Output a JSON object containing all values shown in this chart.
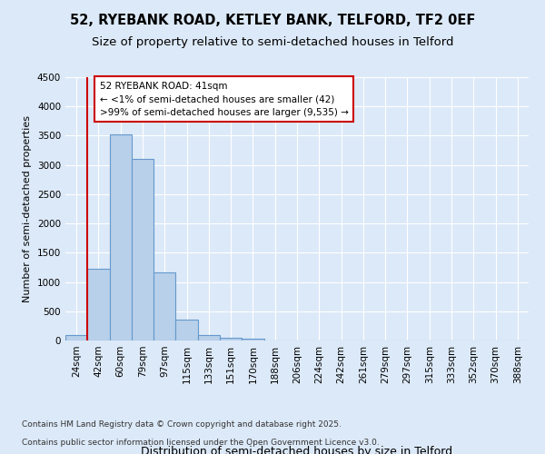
{
  "title_line1": "52, RYEBANK ROAD, KETLEY BANK, TELFORD, TF2 0EF",
  "title_line2": "Size of property relative to semi-detached houses in Telford",
  "xlabel": "Distribution of semi-detached houses by size in Telford",
  "ylabel": "Number of semi-detached properties",
  "categories": [
    "24sqm",
    "42sqm",
    "60sqm",
    "79sqm",
    "97sqm",
    "115sqm",
    "133sqm",
    "151sqm",
    "170sqm",
    "188sqm",
    "206sqm",
    "224sqm",
    "242sqm",
    "261sqm",
    "279sqm",
    "297sqm",
    "315sqm",
    "333sqm",
    "352sqm",
    "370sqm",
    "388sqm"
  ],
  "values": [
    100,
    1230,
    3520,
    3110,
    1160,
    350,
    100,
    52,
    30,
    5,
    3,
    0,
    0,
    0,
    0,
    0,
    0,
    0,
    0,
    0,
    0
  ],
  "bar_color": "#b8d0ea",
  "bar_edge_color": "#6699cc",
  "annotation_text": "52 RYEBANK ROAD: 41sqm\n← <1% of semi-detached houses are smaller (42)\n>99% of semi-detached houses are larger (9,535) →",
  "annotation_box_color": "#ffffff",
  "annotation_box_edge_color": "#cc0000",
  "vline_color": "#cc0000",
  "vline_x_index": 1,
  "ylim": [
    0,
    4500
  ],
  "yticks": [
    0,
    500,
    1000,
    1500,
    2000,
    2500,
    3000,
    3500,
    4000,
    4500
  ],
  "background_color": "#dce9f8",
  "plot_background": "#dce9f8",
  "footer_line1": "Contains HM Land Registry data © Crown copyright and database right 2025.",
  "footer_line2": "Contains public sector information licensed under the Open Government Licence v3.0.",
  "title_fontsize": 10.5,
  "subtitle_fontsize": 9.5,
  "annotation_fontsize": 7.5,
  "ylabel_fontsize": 8,
  "xlabel_fontsize": 9,
  "tick_fontsize": 7.5,
  "footer_fontsize": 6.5
}
